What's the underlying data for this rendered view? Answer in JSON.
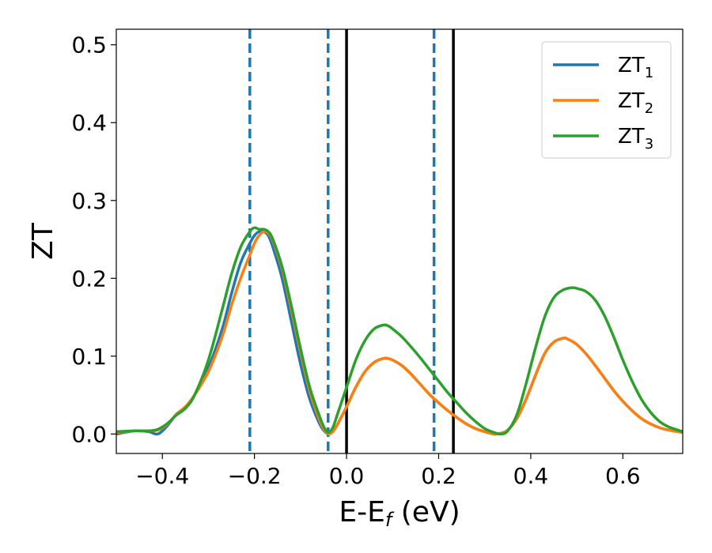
{
  "chart_data": {
    "type": "line",
    "xlabel": "E-E",
    "xlabel_sub": "f",
    "xlabel_unit": " (eV)",
    "ylabel": "ZT",
    "xlim": [
      -0.5,
      0.73
    ],
    "ylim": [
      -0.025,
      0.52
    ],
    "xticks": [
      -0.4,
      -0.2,
      0.0,
      0.2,
      0.4,
      0.6
    ],
    "xtick_labels": [
      "−0.4",
      "−0.2",
      "0.0",
      "0.2",
      "0.4",
      "0.6"
    ],
    "yticks": [
      0.0,
      0.1,
      0.2,
      0.3,
      0.4,
      0.5
    ],
    "ytick_labels": [
      "0.0",
      "0.1",
      "0.2",
      "0.3",
      "0.4",
      "0.5"
    ],
    "grid": false,
    "legend_position": "top-right",
    "vlines": [
      {
        "x": -0.21,
        "style": "dashed",
        "color": "#1f77b4"
      },
      {
        "x": -0.04,
        "style": "dashed",
        "color": "#1f77b4"
      },
      {
        "x": 0.19,
        "style": "dashed",
        "color": "#1f77b4"
      },
      {
        "x": 0.0,
        "style": "solid",
        "color": "#000000"
      },
      {
        "x": 0.232,
        "style": "solid",
        "color": "#000000"
      }
    ],
    "series": [
      {
        "name": "ZT",
        "name_sub": "1",
        "color": "#1f77b4",
        "x": [
          -0.5,
          -0.46,
          -0.43,
          -0.41,
          -0.39,
          -0.37,
          -0.35,
          -0.33,
          -0.3,
          -0.27,
          -0.25,
          -0.23,
          -0.21,
          -0.2,
          -0.19,
          -0.18,
          -0.17,
          -0.16,
          -0.14,
          -0.12,
          -0.1,
          -0.08,
          -0.06,
          -0.05,
          -0.04,
          -0.03,
          -0.02,
          0.0,
          0.02,
          0.04,
          0.06,
          0.08,
          0.09,
          0.1,
          0.12,
          0.14,
          0.16,
          0.18,
          0.2,
          0.22,
          0.24,
          0.26,
          0.28,
          0.3,
          0.32,
          0.335,
          0.35,
          0.37,
          0.39,
          0.41,
          0.43,
          0.45,
          0.47,
          0.48,
          0.5,
          0.52,
          0.54,
          0.56,
          0.58,
          0.6,
          0.62,
          0.64,
          0.66,
          0.68,
          0.7,
          0.73
        ],
        "y": [
          0.0,
          0.004,
          0.003,
          0.0,
          0.01,
          0.025,
          0.035,
          0.05,
          0.085,
          0.135,
          0.18,
          0.22,
          0.245,
          0.255,
          0.26,
          0.26,
          0.255,
          0.24,
          0.2,
          0.145,
          0.09,
          0.045,
          0.015,
          0.005,
          0.0,
          0.003,
          0.012,
          0.035,
          0.06,
          0.08,
          0.092,
          0.097,
          0.097,
          0.095,
          0.088,
          0.077,
          0.064,
          0.051,
          0.04,
          0.03,
          0.021,
          0.013,
          0.007,
          0.003,
          0.0,
          0.001,
          0.005,
          0.02,
          0.045,
          0.075,
          0.103,
          0.118,
          0.123,
          0.122,
          0.115,
          0.103,
          0.088,
          0.072,
          0.056,
          0.042,
          0.03,
          0.02,
          0.013,
          0.008,
          0.005,
          0.002
        ]
      },
      {
        "name": "ZT",
        "name_sub": "2",
        "color": "#ff7f0e",
        "x": [
          -0.5,
          -0.46,
          -0.43,
          -0.41,
          -0.39,
          -0.37,
          -0.35,
          -0.33,
          -0.3,
          -0.27,
          -0.25,
          -0.23,
          -0.21,
          -0.2,
          -0.19,
          -0.18,
          -0.17,
          -0.16,
          -0.14,
          -0.12,
          -0.1,
          -0.08,
          -0.06,
          -0.05,
          -0.04,
          -0.03,
          -0.02,
          0.0,
          0.02,
          0.04,
          0.06,
          0.08,
          0.09,
          0.1,
          0.12,
          0.14,
          0.16,
          0.18,
          0.2,
          0.22,
          0.24,
          0.26,
          0.28,
          0.3,
          0.32,
          0.335,
          0.35,
          0.37,
          0.39,
          0.41,
          0.43,
          0.45,
          0.47,
          0.48,
          0.5,
          0.52,
          0.54,
          0.56,
          0.58,
          0.6,
          0.62,
          0.64,
          0.66,
          0.68,
          0.7,
          0.73
        ],
        "y": [
          0.002,
          0.004,
          0.004,
          0.005,
          0.012,
          0.025,
          0.035,
          0.05,
          0.08,
          0.125,
          0.165,
          0.2,
          0.23,
          0.245,
          0.255,
          0.26,
          0.258,
          0.248,
          0.212,
          0.16,
          0.105,
          0.055,
          0.02,
          0.007,
          0.0,
          0.003,
          0.012,
          0.035,
          0.06,
          0.08,
          0.092,
          0.097,
          0.097,
          0.095,
          0.088,
          0.077,
          0.064,
          0.051,
          0.04,
          0.03,
          0.021,
          0.013,
          0.007,
          0.003,
          0.0,
          0.001,
          0.005,
          0.02,
          0.045,
          0.075,
          0.103,
          0.118,
          0.123,
          0.122,
          0.115,
          0.103,
          0.088,
          0.072,
          0.056,
          0.042,
          0.03,
          0.02,
          0.013,
          0.008,
          0.005,
          0.002
        ]
      },
      {
        "name": "ZT",
        "name_sub": "3",
        "color": "#2ca02c",
        "x": [
          -0.5,
          -0.46,
          -0.43,
          -0.41,
          -0.39,
          -0.37,
          -0.35,
          -0.33,
          -0.3,
          -0.27,
          -0.25,
          -0.23,
          -0.21,
          -0.2,
          -0.19,
          -0.18,
          -0.17,
          -0.16,
          -0.14,
          -0.12,
          -0.1,
          -0.08,
          -0.06,
          -0.05,
          -0.04,
          -0.03,
          -0.02,
          0.0,
          0.02,
          0.04,
          0.06,
          0.08,
          0.09,
          0.1,
          0.12,
          0.14,
          0.16,
          0.18,
          0.2,
          0.22,
          0.24,
          0.26,
          0.28,
          0.3,
          0.32,
          0.335,
          0.35,
          0.37,
          0.39,
          0.41,
          0.43,
          0.45,
          0.47,
          0.49,
          0.5,
          0.52,
          0.54,
          0.56,
          0.58,
          0.6,
          0.62,
          0.64,
          0.66,
          0.68,
          0.7,
          0.73
        ],
        "y": [
          0.003,
          0.004,
          0.004,
          0.006,
          0.013,
          0.024,
          0.033,
          0.05,
          0.095,
          0.16,
          0.205,
          0.24,
          0.26,
          0.265,
          0.263,
          0.263,
          0.26,
          0.25,
          0.215,
          0.165,
          0.11,
          0.06,
          0.025,
          0.01,
          0.002,
          0.008,
          0.025,
          0.06,
          0.095,
          0.12,
          0.135,
          0.14,
          0.139,
          0.135,
          0.125,
          0.112,
          0.098,
          0.083,
          0.068,
          0.053,
          0.04,
          0.027,
          0.016,
          0.007,
          0.002,
          0.0,
          0.004,
          0.025,
          0.065,
          0.11,
          0.15,
          0.175,
          0.185,
          0.188,
          0.187,
          0.183,
          0.172,
          0.152,
          0.125,
          0.095,
          0.068,
          0.045,
          0.028,
          0.016,
          0.009,
          0.003
        ]
      }
    ]
  }
}
